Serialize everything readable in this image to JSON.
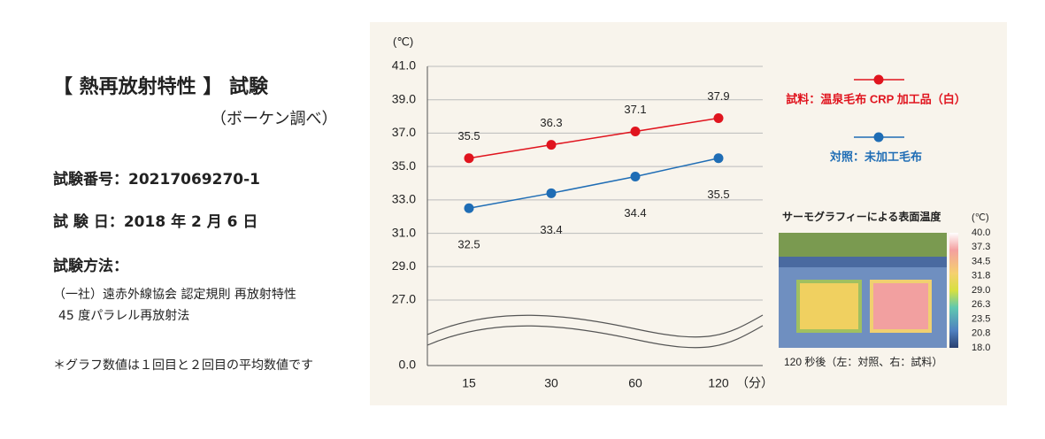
{
  "info": {
    "title": "【 熱再放射特性 】 試験",
    "source": "（ボーケン調べ）",
    "test_number": "試験番号：20217069270-1",
    "test_date": "試 験 日：2018 年 2 月 6 日",
    "method_heading": "試験方法：",
    "method_lines": [
      "（一社）遠赤外線協会 認定規則 再放射特性",
      "45 度パラレル再放射法"
    ],
    "note": "＊グラフ数値は１回目と２回目の平均数値です"
  },
  "chart_data": {
    "type": "line",
    "y_unit": "(℃)",
    "x_unit": "（分）",
    "categories": [
      "15",
      "30",
      "60",
      "120"
    ],
    "series": [
      {
        "name": "試料：温泉毛布 CRP 加工品（白）",
        "color": "#e0141e",
        "values": [
          35.5,
          36.3,
          37.1,
          37.9
        ]
      },
      {
        "name": "対照：未加工毛布",
        "color": "#1f6db5",
        "values": [
          32.5,
          33.4,
          34.4,
          35.5
        ]
      }
    ],
    "ylim": [
      0,
      41
    ],
    "yticks": [
      {
        "value": 0,
        "label": "0.0"
      },
      {
        "value": 27,
        "label": "27.0"
      },
      {
        "value": 29,
        "label": "29.0"
      },
      {
        "value": 31,
        "label": "31.0"
      },
      {
        "value": 33,
        "label": "33.0"
      },
      {
        "value": 35,
        "label": "35.0"
      },
      {
        "value": 37,
        "label": "37.0"
      },
      {
        "value": 39,
        "label": "39.0"
      },
      {
        "value": 41,
        "label": "41.0"
      }
    ],
    "grid": true
  },
  "thermal": {
    "title": "サーモグラフィーによる表面温度",
    "unit": "(℃)",
    "scale": [
      "40.0",
      "37.3",
      "34.5",
      "31.8",
      "29.0",
      "26.3",
      "23.5",
      "20.8",
      "18.0"
    ],
    "caption": "120 秒後（左：対照、右：試料）"
  }
}
